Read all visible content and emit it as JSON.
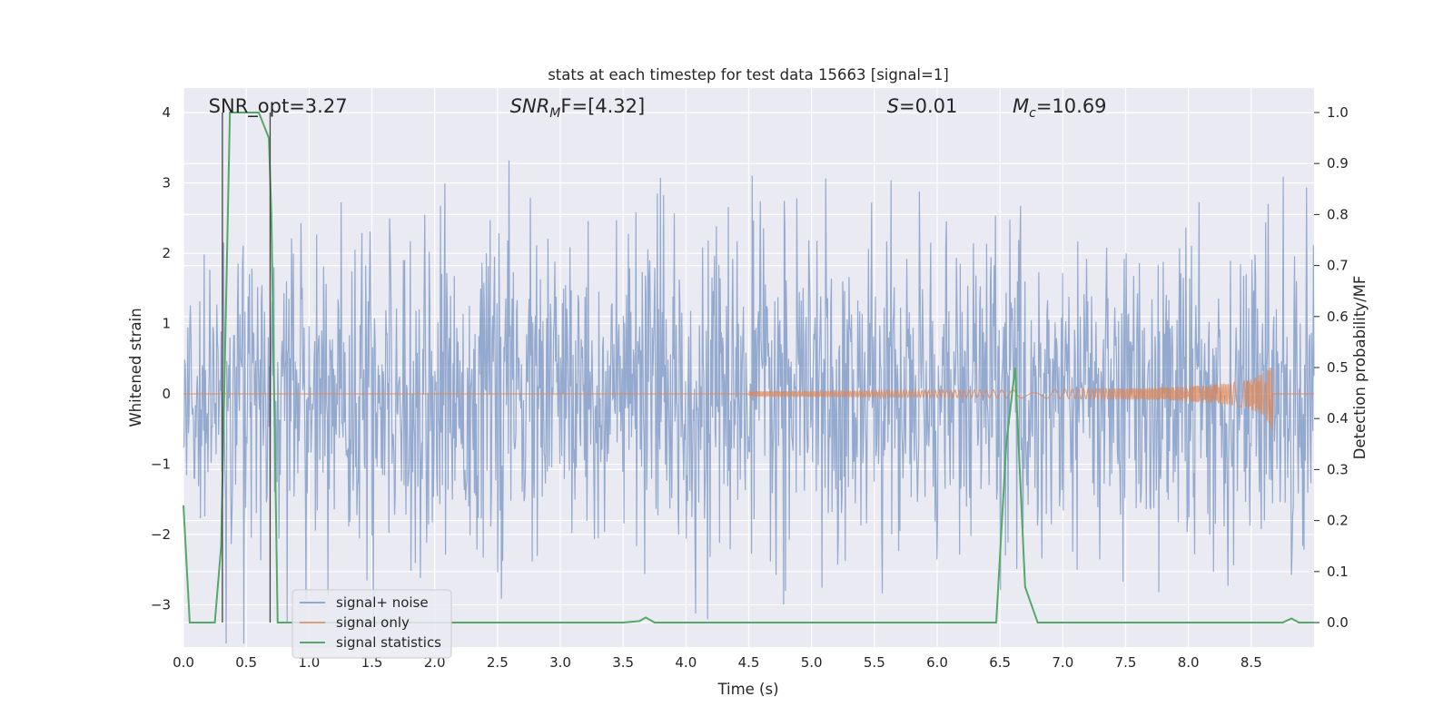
{
  "chart_data": {
    "type": "line",
    "title": "stats at each timestep for test data 15663 [signal=1]",
    "xlabel": "Time (s)",
    "ylabel": "Whitened strain",
    "y2label": "Detection probability/MF",
    "xlim": [
      0,
      9.0
    ],
    "ylim": [
      -3.6,
      4.35
    ],
    "y2lim": [
      -0.048,
      1.048
    ],
    "xticks": [
      0.0,
      0.5,
      1.0,
      1.5,
      2.0,
      2.5,
      3.0,
      3.5,
      4.0,
      4.5,
      5.0,
      5.5,
      6.0,
      6.5,
      7.0,
      7.5,
      8.0,
      8.5
    ],
    "xtick_labels": [
      "0.0",
      "0.5",
      "1.0",
      "1.5",
      "2.0",
      "2.5",
      "3.0",
      "3.5",
      "4.0",
      "4.5",
      "5.0",
      "5.5",
      "6.0",
      "6.5",
      "7.0",
      "7.5",
      "8.0",
      "8.5"
    ],
    "yticks": [
      4,
      3,
      2,
      1,
      0,
      -1,
      -2,
      -3
    ],
    "ytick_labels": [
      "4",
      "3",
      "2",
      "1",
      "0",
      "−1",
      "−2",
      "−3"
    ],
    "y2ticks": [
      1.0,
      0.9,
      0.8,
      0.7,
      0.6,
      0.5,
      0.4,
      0.3,
      0.2,
      0.1,
      0.0
    ],
    "y2tick_labels": [
      "1.0",
      "0.9",
      "0.8",
      "0.7",
      "0.6",
      "0.5",
      "0.4",
      "0.3",
      "0.2",
      "0.1",
      "0.0"
    ],
    "grid": true,
    "legend_position": "lower-left",
    "annotations": [
      {
        "label": "SNR_opt=3.27",
        "x": 0.2
      },
      {
        "label": "SNR",
        "sub": "M",
        "suffix": "F=[4.32]",
        "x": 2.6
      },
      {
        "label": "S",
        "suffix": "=0.01",
        "x": 5.6
      },
      {
        "label": "M",
        "sub": "c",
        "suffix": "=10.69",
        "x": 6.6
      }
    ],
    "vlines": [
      0.31,
      0.69
    ],
    "series": [
      {
        "name": "signal+ noise",
        "color": "#4c72b0",
        "kind": "noise",
        "n": 1800,
        "sigma": 1.1,
        "peak": 4.0
      },
      {
        "name": "signal only",
        "color": "#dd8452",
        "kind": "chirp",
        "t_start": 4.5,
        "t_merge": 8.67,
        "amp_max": 0.55
      },
      {
        "name": "signal statistics",
        "color": "#55a868",
        "kind": "prob",
        "x": [
          0.0,
          0.05,
          0.25,
          0.3,
          0.37,
          0.4,
          0.6,
          0.68,
          0.7,
          0.75,
          0.8,
          3.5,
          3.63,
          3.68,
          3.75,
          6.47,
          6.55,
          6.62,
          6.7,
          6.8,
          6.88,
          8.75,
          8.82,
          8.88,
          9.0
        ],
        "y": [
          0.23,
          0.0,
          0.0,
          0.15,
          1.0,
          1.0,
          1.0,
          0.95,
          0.8,
          0.0,
          0.0,
          0.0,
          0.003,
          0.01,
          0.0,
          0.0,
          0.35,
          0.5,
          0.07,
          0.0,
          0.0,
          0.0,
          0.008,
          0.0,
          0.0
        ]
      }
    ]
  }
}
